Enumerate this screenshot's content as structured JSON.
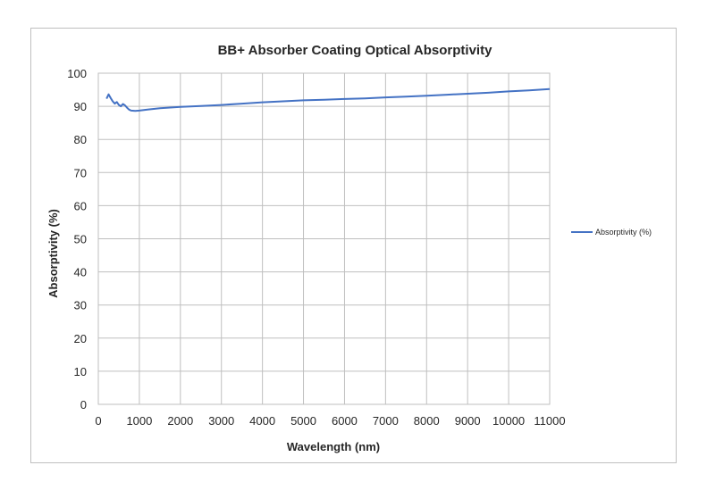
{
  "chart_data": {
    "type": "line",
    "title": "BB+ Absorber Coating Optical Absorptivity",
    "xlabel": "Wavelength (nm)",
    "ylabel": "Absorptivity (%)",
    "xlim": [
      0,
      11000
    ],
    "ylim": [
      0,
      100
    ],
    "x_ticks": [
      0,
      1000,
      2000,
      3000,
      4000,
      5000,
      6000,
      7000,
      8000,
      9000,
      10000,
      11000
    ],
    "y_ticks": [
      0,
      10,
      20,
      30,
      40,
      50,
      60,
      70,
      80,
      90,
      100
    ],
    "grid": "vertical and horizontal major gridlines",
    "legend_position": "right",
    "series": [
      {
        "name": "Absorptivity (%)",
        "color": "#4472c4",
        "points": [
          [
            200,
            92.3
          ],
          [
            250,
            93.6
          ],
          [
            300,
            92.5
          ],
          [
            350,
            91.5
          ],
          [
            400,
            90.8
          ],
          [
            450,
            91.3
          ],
          [
            500,
            90.4
          ],
          [
            550,
            90.0
          ],
          [
            600,
            90.7
          ],
          [
            650,
            90.3
          ],
          [
            700,
            89.6
          ],
          [
            750,
            89.0
          ],
          [
            800,
            88.7
          ],
          [
            900,
            88.6
          ],
          [
            1000,
            88.7
          ],
          [
            1200,
            89.0
          ],
          [
            1500,
            89.4
          ],
          [
            2000,
            89.8
          ],
          [
            2500,
            90.1
          ],
          [
            3000,
            90.4
          ],
          [
            3500,
            90.8
          ],
          [
            4000,
            91.2
          ],
          [
            4500,
            91.5
          ],
          [
            5000,
            91.8
          ],
          [
            5500,
            92.0
          ],
          [
            6000,
            92.2
          ],
          [
            6500,
            92.4
          ],
          [
            7000,
            92.7
          ],
          [
            7500,
            92.9
          ],
          [
            8000,
            93.2
          ],
          [
            8500,
            93.5
          ],
          [
            9000,
            93.8
          ],
          [
            9500,
            94.1
          ],
          [
            10000,
            94.5
          ],
          [
            10500,
            94.8
          ],
          [
            11000,
            95.2
          ]
        ]
      }
    ]
  }
}
